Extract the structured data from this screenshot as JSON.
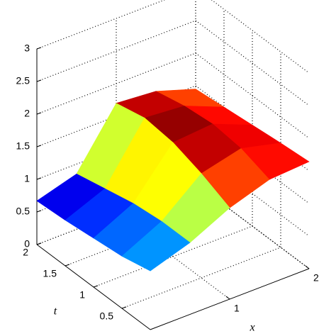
{
  "chart_data": {
    "type": "surface",
    "xlabel": "x",
    "ylabel": "t",
    "x": [
      0,
      0.5,
      1,
      1.5,
      2
    ],
    "y": [
      0,
      0.5,
      1,
      1.5,
      2
    ],
    "z": [
      [
        0.9,
        1.1,
        1.4,
        1.6,
        1.64
      ],
      [
        0.8,
        1.1,
        1.6,
        1.75,
        1.6
      ],
      [
        0.75,
        1.05,
        1.75,
        1.8,
        1.55
      ],
      [
        0.7,
        0.95,
        1.8,
        1.75,
        1.5
      ],
      [
        0.67,
        0.85,
        1.7,
        1.65,
        1.45
      ]
    ],
    "xlim": [
      0,
      2
    ],
    "ylim": [
      0,
      2
    ],
    "zlim": [
      0,
      3
    ],
    "xticks": [
      1,
      2
    ],
    "yticks": [
      0.5,
      1,
      1.5,
      2
    ],
    "zticks": [
      0,
      0.5,
      1,
      1.5,
      2,
      2.5,
      3
    ],
    "colormap": "jet",
    "grid": true
  }
}
